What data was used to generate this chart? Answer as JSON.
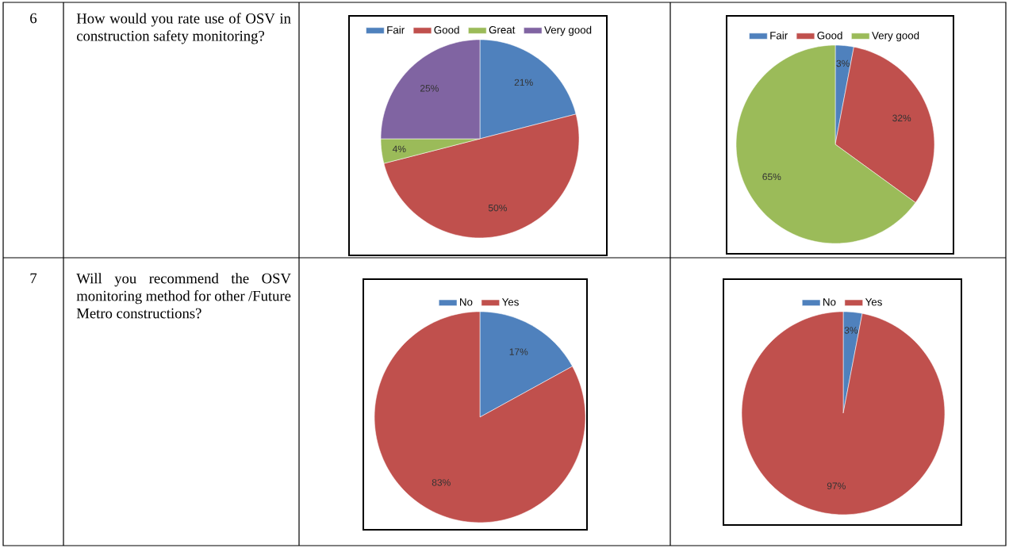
{
  "chart_data": [
    {
      "type": "other",
      "annotations": [
        "6",
        "How would you rate use of OSV in construction safety monitoring?"
      ]
    },
    {
      "type": "pie",
      "categories": [
        "Fair",
        "Good",
        "Great",
        "Very good"
      ],
      "values": [
        21,
        50,
        4,
        25
      ],
      "value_labels": [
        "21%",
        "50%",
        "4%",
        "25%"
      ],
      "colors": [
        "#4f81bd",
        "#c0504d",
        "#9bbb59",
        "#8064a2"
      ],
      "legend": "top"
    },
    {
      "type": "pie",
      "categories": [
        "Fair",
        "Good",
        "Very good"
      ],
      "values": [
        3,
        32,
        65
      ],
      "value_labels": [
        "3%",
        "32%",
        "65%"
      ],
      "colors": [
        "#4f81bd",
        "#c0504d",
        "#9bbb59"
      ],
      "legend": "top"
    },
    {
      "type": "other",
      "annotations": [
        "7",
        "Will you recommend the OSV monitoring method for other /Future Metro constructions?"
      ]
    },
    {
      "type": "pie",
      "categories": [
        "No",
        "Yes"
      ],
      "values": [
        17,
        83
      ],
      "value_labels": [
        "17%",
        "83%"
      ],
      "colors": [
        "#4f81bd",
        "#c0504d"
      ],
      "legend": "top"
    },
    {
      "type": "pie",
      "categories": [
        "No",
        "Yes"
      ],
      "values": [
        3,
        97
      ],
      "value_labels": [
        "3%",
        "97%"
      ],
      "colors": [
        "#4f81bd",
        "#c0504d"
      ],
      "legend": "top"
    }
  ]
}
